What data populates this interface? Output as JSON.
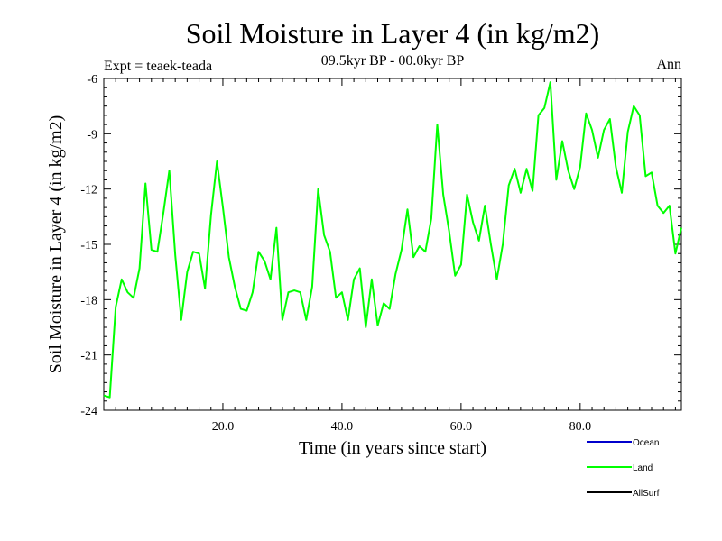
{
  "chart_data": {
    "type": "line",
    "title": "Soil Moisture in Layer 4 (in kg/m2)",
    "subtitle_left": "Expt = teaek-teada",
    "subtitle_center": "09.5kyr BP - 00.0kyr BP",
    "subtitle_right": "Ann",
    "xlabel": "Time (in years since start)",
    "ylabel": "Soil Moisture in Layer 4 (in kg/m2)",
    "xlim": [
      0,
      97
    ],
    "ylim": [
      -24,
      -6
    ],
    "xticks": [
      20,
      40,
      60,
      80
    ],
    "xtick_labels": [
      "20.0",
      "40.0",
      "60.0",
      "80.0"
    ],
    "yticks": [
      -24,
      -21,
      -18,
      -15,
      -12,
      -9,
      -6
    ],
    "ytick_labels": [
      "-24",
      "-21",
      "-18",
      "-15",
      "-12",
      "-9",
      "-6"
    ],
    "legend_position": "bottom-right",
    "series": [
      {
        "name": "Ocean",
        "color": "#0000cc",
        "values": []
      },
      {
        "name": "Land",
        "color": "#00ff00",
        "x": [
          0,
          1,
          2,
          3,
          4,
          5,
          6,
          7,
          8,
          9,
          10,
          11,
          12,
          13,
          14,
          15,
          16,
          17,
          18,
          19,
          20,
          21,
          22,
          23,
          24,
          25,
          26,
          27,
          28,
          29,
          30,
          31,
          32,
          33,
          34,
          35,
          36,
          37,
          38,
          39,
          40,
          41,
          42,
          43,
          44,
          45,
          46,
          47,
          48,
          49,
          50,
          51,
          52,
          53,
          54,
          55,
          56,
          57,
          58,
          59,
          60,
          61,
          62,
          63,
          64,
          65,
          66,
          67,
          68,
          69,
          70,
          71,
          72,
          73,
          74,
          75,
          76,
          77,
          78,
          79,
          80,
          81,
          82,
          83,
          84,
          85,
          86,
          87,
          88,
          89,
          90,
          91,
          92,
          93,
          94,
          95,
          96,
          97
        ],
        "values": [
          -23.2,
          -23.3,
          -18.4,
          -16.9,
          -17.6,
          -17.9,
          -16.3,
          -11.7,
          -15.3,
          -15.4,
          -13.3,
          -11.0,
          -15.6,
          -19.1,
          -16.5,
          -15.4,
          -15.5,
          -17.4,
          -13.4,
          -10.5,
          -13.0,
          -15.7,
          -17.3,
          -18.5,
          -18.6,
          -17.6,
          -15.4,
          -15.9,
          -16.9,
          -14.1,
          -19.1,
          -17.6,
          -17.5,
          -17.6,
          -19.1,
          -17.3,
          -12.0,
          -14.5,
          -15.4,
          -17.9,
          -17.6,
          -19.1,
          -16.9,
          -16.3,
          -19.5,
          -16.9,
          -19.4,
          -18.2,
          -18.5,
          -16.6,
          -15.3,
          -13.1,
          -15.7,
          -15.1,
          -15.4,
          -13.6,
          -8.5,
          -12.3,
          -14.3,
          -16.7,
          -16.1,
          -12.3,
          -13.8,
          -14.8,
          -12.9,
          -15.0,
          -16.9,
          -15.0,
          -11.8,
          -10.9,
          -12.2,
          -10.9,
          -12.1,
          -8.0,
          -7.6,
          -6.2,
          -11.5,
          -9.4,
          -11.0,
          -12.0,
          -10.8,
          -7.9,
          -8.8,
          -10.3,
          -8.8,
          -8.2,
          -10.8,
          -12.2,
          -8.9,
          -7.5,
          -8.0,
          -11.3,
          -11.1,
          -12.9,
          -13.3,
          -12.9,
          -15.5,
          -14.1
        ]
      },
      {
        "name": "AllSurf",
        "color": "#000000",
        "values": []
      }
    ]
  }
}
